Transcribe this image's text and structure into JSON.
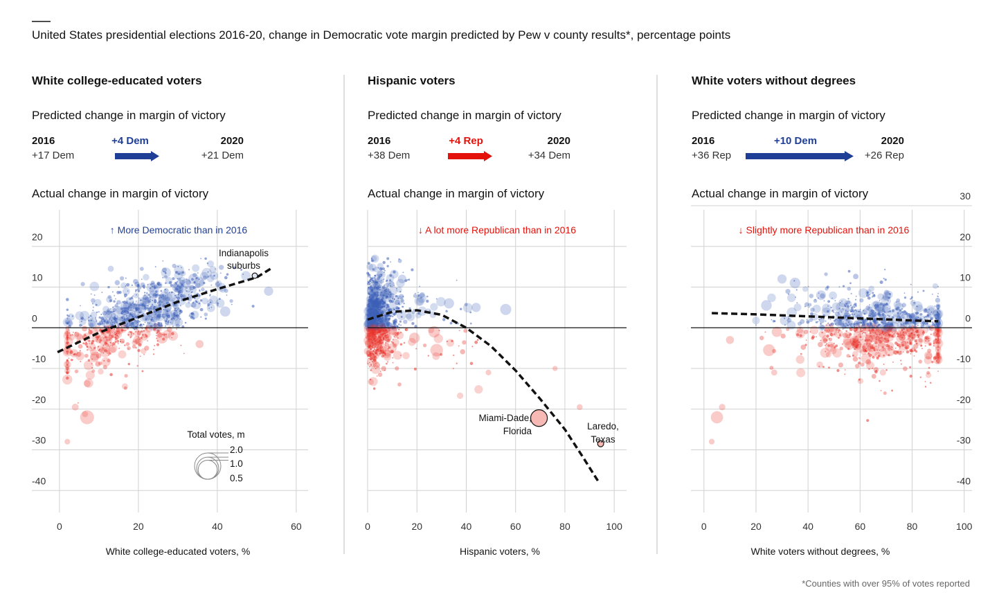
{
  "header": {
    "title": "United States presidential elections 2016-20, change in Democratic vote margin predicted by Pew v county results*, percentage points"
  },
  "footnote": "*Counties with over 95% of votes reported",
  "colors": {
    "dem": "#1f3f97",
    "rep": "#e3120b",
    "dem_point": "#3d5fb8",
    "rep_point": "#e8332b"
  },
  "legend": {
    "title": "Total votes, m",
    "sizes": [
      {
        "label": "2.0",
        "value": 2.0
      },
      {
        "label": "1.0",
        "value": 1.0
      },
      {
        "label": "0.5",
        "value": 0.5
      }
    ]
  },
  "chart_data": [
    {
      "type": "scatter",
      "panel_title": "White college-educated voters",
      "predicted_heading": "Predicted change in margin of victory",
      "predicted": {
        "from_year": "2016",
        "from_value": "+17 Dem",
        "delta": "+4 Dem",
        "delta_party": "dem",
        "to_year": "2020",
        "to_value": "+21 Dem"
      },
      "actual_heading": "Actual change in margin of victory",
      "note": "↑ More Democratic than in 2016",
      "note_party": "dem",
      "xlabel": "White college-educated voters, %",
      "ylabel": "",
      "xlim": [
        -7,
        63
      ],
      "ylim": [
        -42,
        30
      ],
      "x_ticks": [
        0,
        20,
        40,
        60
      ],
      "x_tick_labels": [
        "0",
        "20",
        "40",
        "60"
      ],
      "y_ticks": [
        -40,
        -30,
        -20,
        -10,
        0,
        10,
        20
      ],
      "y_tick_labels": [
        "-40",
        "-30",
        "-20",
        "-10",
        "0",
        "10",
        "20"
      ],
      "y_axis_side": "left",
      "grid": true,
      "trend": [
        [
          -0.5,
          -6
        ],
        [
          10,
          -1.2
        ],
        [
          20,
          2.6
        ],
        [
          30,
          6.4
        ],
        [
          40,
          9.5
        ],
        [
          50,
          12.4
        ],
        [
          54,
          14.8
        ]
      ],
      "cloud": {
        "x_center": 20,
        "x_spread": 11,
        "x_range": [
          2,
          54
        ],
        "slope": 0.37,
        "intercept": -4.5,
        "noise": 4.2,
        "count": 950
      },
      "highlights": [
        {
          "name": "Indianapolis suburbs",
          "label_lines": [
            "Indianapolis",
            "suburbs"
          ],
          "x": 49.5,
          "y": 12.8,
          "votes": 0.05
        }
      ],
      "big_points": [
        {
          "x": 7,
          "y": -22,
          "votes": 0.9
        },
        {
          "x": 26,
          "y": -2.5,
          "votes": 0.5
        },
        {
          "x": 35.5,
          "y": -4,
          "votes": 0.2
        },
        {
          "x": 4,
          "y": -19.5,
          "votes": 0.12
        },
        {
          "x": 2,
          "y": -28,
          "votes": 0.06
        },
        {
          "x": 13,
          "y": 14.5,
          "votes": 0.08
        },
        {
          "x": 34,
          "y": 12,
          "votes": 0.45
        },
        {
          "x": 42,
          "y": 4,
          "votes": 0.4
        },
        {
          "x": 30,
          "y": 10,
          "votes": 0.55
        },
        {
          "x": 53,
          "y": 9,
          "votes": 0.3
        },
        {
          "x": 24,
          "y": 9,
          "votes": 0.35
        }
      ]
    },
    {
      "type": "scatter",
      "panel_title": "Hispanic voters",
      "predicted_heading": "Predicted change in margin of victory",
      "predicted": {
        "from_year": "2016",
        "from_value": "+38 Dem",
        "delta": "+4 Rep",
        "delta_party": "rep",
        "to_year": "2020",
        "to_value": "+34 Dem"
      },
      "actual_heading": "Actual change in margin of victory",
      "note": "↓ A lot more Republican than in 2016",
      "note_party": "rep",
      "xlabel": "Hispanic voters, %",
      "ylabel": "",
      "xlim": [
        0,
        105
      ],
      "ylim": [
        -42,
        30
      ],
      "x_ticks": [
        0,
        20,
        40,
        60,
        80,
        100
      ],
      "x_tick_labels": [
        "0",
        "20",
        "40",
        "60",
        "80",
        "100"
      ],
      "y_ticks": [
        -40,
        -30,
        -20,
        -10,
        0,
        10,
        20
      ],
      "y_tick_labels": [],
      "y_axis_side": "none",
      "grid": true,
      "trend": [
        [
          0,
          2
        ],
        [
          10,
          3.9
        ],
        [
          20,
          4.3
        ],
        [
          30,
          3.2
        ],
        [
          40,
          0
        ],
        [
          50,
          -4.5
        ],
        [
          60,
          -10.5
        ],
        [
          70,
          -17.5
        ],
        [
          80,
          -25
        ],
        [
          87,
          -31.5
        ],
        [
          94,
          -38.2
        ]
      ],
      "cloud": {
        "x_center": 3,
        "x_spread": 6,
        "x_range": [
          0,
          60
        ],
        "slope": 0,
        "intercept": 1.5,
        "noise": 5.5,
        "count": 950
      },
      "highlights": [
        {
          "name": "Miami-Dade, Florida",
          "label_lines": [
            "Miami-Dade,",
            "Florida"
          ],
          "x": 69.5,
          "y": -22.2,
          "votes": 1.4
        },
        {
          "name": "Laredo, Texas",
          "label_lines": [
            "Laredo,",
            "Texas"
          ],
          "x": 94.5,
          "y": -28.5,
          "votes": 0.08
        }
      ],
      "big_points": [
        {
          "x": 56,
          "y": 4.5,
          "votes": 0.5
        },
        {
          "x": 28,
          "y": -5.5,
          "votes": 0.7
        },
        {
          "x": 27,
          "y": -1,
          "votes": 0.55
        },
        {
          "x": 19,
          "y": -2.5,
          "votes": 0.45
        },
        {
          "x": 14,
          "y": 12,
          "votes": 0.25
        },
        {
          "x": 44,
          "y": 5,
          "votes": 0.3
        },
        {
          "x": 33,
          "y": 6,
          "votes": 0.4
        },
        {
          "x": 86,
          "y": -19.5,
          "votes": 0.07
        },
        {
          "x": 49,
          "y": -11,
          "votes": 0.06
        },
        {
          "x": 76,
          "y": -10,
          "votes": 0.04
        }
      ]
    },
    {
      "type": "scatter",
      "panel_title": "White voters without degrees",
      "predicted_heading": "Predicted change in margin of victory",
      "predicted": {
        "from_year": "2016",
        "from_value": "+36 Rep",
        "delta": "+10 Dem",
        "delta_party": "dem",
        "to_year": "2020",
        "to_value": "+26 Rep"
      },
      "actual_heading": "Actual change in margin of victory",
      "note": "↓ Slightly more Republican than in 2016",
      "note_party": "rep",
      "xlabel": "White voters without degrees, %",
      "ylabel": "",
      "xlim": [
        -5,
        103
      ],
      "ylim": [
        -42,
        30
      ],
      "x_ticks": [
        0,
        20,
        40,
        60,
        80,
        100
      ],
      "x_tick_labels": [
        "0",
        "20",
        "40",
        "60",
        "80",
        "100"
      ],
      "y_ticks": [
        -40,
        -30,
        -20,
        -10,
        0,
        10,
        20,
        30
      ],
      "y_tick_labels": [
        "-40",
        "-30",
        "-20",
        "-10",
        "0",
        "10",
        "20",
        "30"
      ],
      "y_axis_side": "right",
      "grid": true,
      "trend": [
        [
          3,
          3.6
        ],
        [
          20,
          3.3
        ],
        [
          40,
          2.8
        ],
        [
          60,
          2.3
        ],
        [
          80,
          1.8
        ],
        [
          90,
          1.6
        ]
      ],
      "cloud": {
        "x_center": 68,
        "x_spread": 16,
        "x_range": [
          20,
          90
        ],
        "slope": -0.05,
        "intercept": 3.8,
        "noise": 4.5,
        "count": 950
      },
      "highlights": [],
      "big_points": [
        {
          "x": 5,
          "y": -22,
          "votes": 0.65
        },
        {
          "x": 25,
          "y": -5.5,
          "votes": 0.6
        },
        {
          "x": 10,
          "y": -3,
          "votes": 0.2
        },
        {
          "x": 24,
          "y": 5.5,
          "votes": 0.45
        },
        {
          "x": 30,
          "y": 12,
          "votes": 0.3
        },
        {
          "x": 35,
          "y": 11,
          "votes": 0.45
        },
        {
          "x": 45,
          "y": 8,
          "votes": 0.35
        },
        {
          "x": 28,
          "y": -1,
          "votes": 0.4
        },
        {
          "x": 3,
          "y": -28,
          "votes": 0.06
        },
        {
          "x": 7,
          "y": -19.5,
          "votes": 0.1
        },
        {
          "x": 27,
          "y": -11,
          "votes": 0.08
        }
      ]
    }
  ]
}
